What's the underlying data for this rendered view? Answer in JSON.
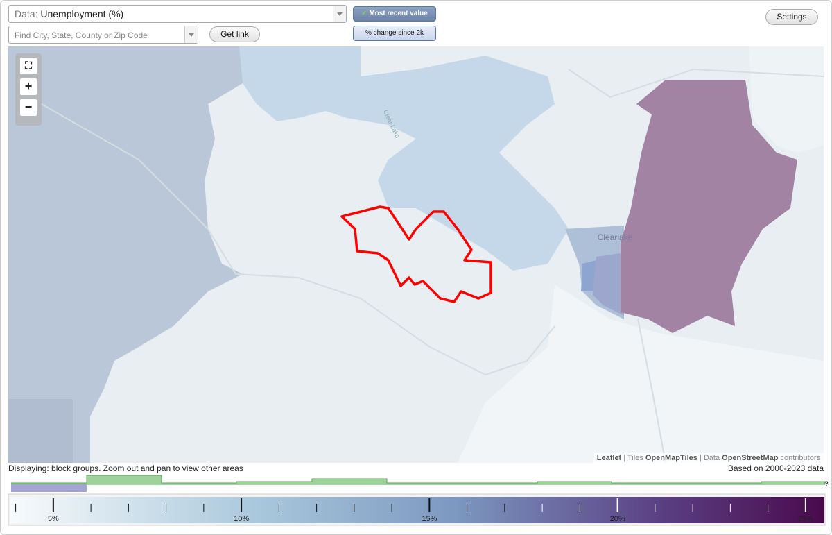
{
  "controls": {
    "data_label": "Data:",
    "data_value": "Unemployment (%)",
    "search_placeholder": "Find City, State, County or Zip Code",
    "get_link": "Get link",
    "mode_buttons": [
      "Most recent value",
      "% change since 2k"
    ],
    "settings": "Settings"
  },
  "map": {
    "place_labels": [
      "Clearlake",
      "Clear Lake"
    ],
    "zoom_in": "+",
    "zoom_out": "−",
    "attribution": [
      "Leaflet",
      "| Tiles",
      "OpenMapTiles",
      "| Data",
      "OpenStreetMap",
      "contributors"
    ]
  },
  "status": {
    "displaying": "Displaying: block groups. Zoom out and pan to view other areas",
    "based_on": "Based on 2000-2023 data"
  },
  "legend": {
    "range": [
      3.86,
      25.5
    ],
    "ticks": [
      {
        "value": 5,
        "label": "5%"
      },
      {
        "value": 10,
        "label": "10%"
      },
      {
        "value": 15,
        "label": "15%"
      },
      {
        "value": 20,
        "label": "20%"
      },
      {
        "value": 25,
        "label": "25%"
      }
    ],
    "minor_ticks": [
      4,
      6,
      7,
      8,
      9,
      11,
      12,
      13,
      14,
      16,
      17,
      18,
      19,
      21,
      22,
      23,
      24
    ],
    "unknown": "?"
  }
}
